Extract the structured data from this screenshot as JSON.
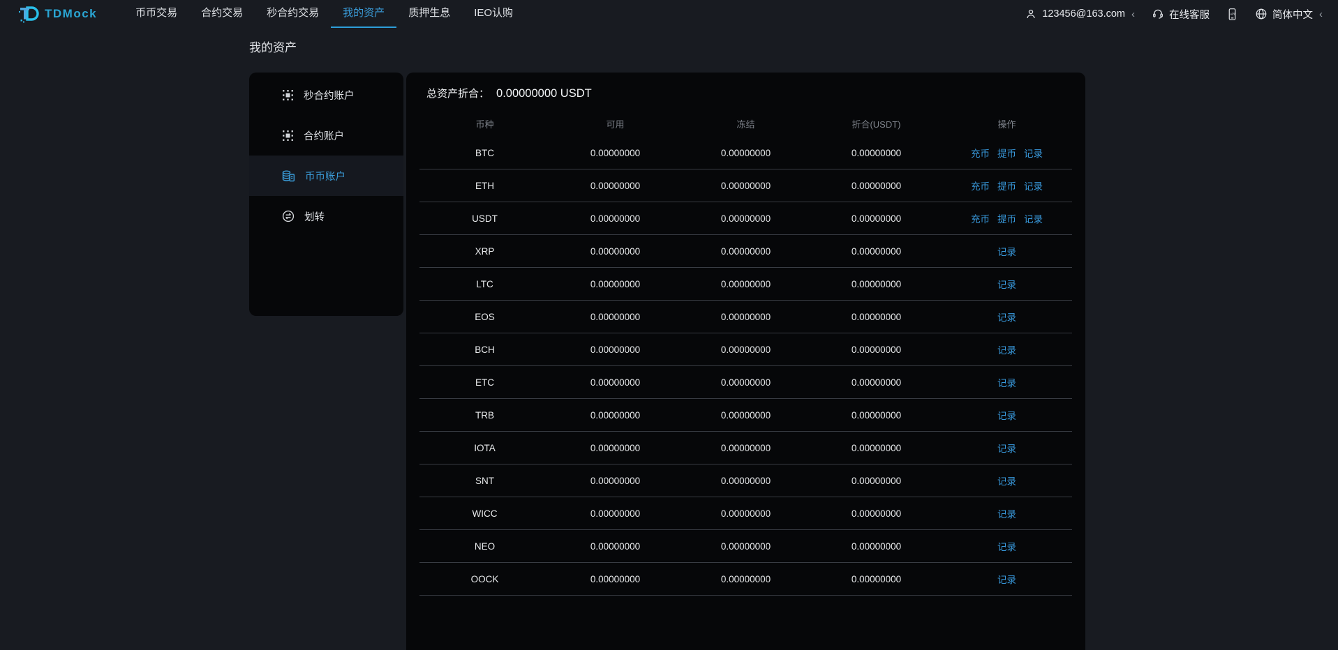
{
  "header": {
    "logo_text": "TDMock",
    "nav": [
      {
        "label": "币币交易",
        "active": false
      },
      {
        "label": "合约交易",
        "active": false
      },
      {
        "label": "秒合约交易",
        "active": false
      },
      {
        "label": "我的资产",
        "active": true
      },
      {
        "label": "质押生息",
        "active": false
      },
      {
        "label": "IEO认购",
        "active": false
      }
    ],
    "user_email": "123456@163.com",
    "service_label": "在线客服",
    "language_label": "简体中文",
    "chevron": "‹"
  },
  "page": {
    "title": "我的资产"
  },
  "sidebar": {
    "items": [
      {
        "label": "秒合约账户",
        "icon": "seconds-contract-icon",
        "active": false
      },
      {
        "label": "合约账户",
        "icon": "contract-icon",
        "active": false
      },
      {
        "label": "币币账户",
        "icon": "coins-icon",
        "active": true
      },
      {
        "label": "划转",
        "icon": "transfer-icon",
        "active": false
      }
    ]
  },
  "assets": {
    "total_label": "总资产折合：",
    "total_value": "0.00000000 USDT",
    "table": {
      "columns": [
        "币种",
        "可用",
        "冻结",
        "折合(USDT)",
        "操作"
      ],
      "action_labels": {
        "deposit": "充币",
        "withdraw": "提币",
        "record": "记录"
      },
      "rows": [
        {
          "symbol": "BTC",
          "available": "0.00000000",
          "frozen": "0.00000000",
          "usdt": "0.00000000",
          "actions": [
            "deposit",
            "withdraw",
            "record"
          ]
        },
        {
          "symbol": "ETH",
          "available": "0.00000000",
          "frozen": "0.00000000",
          "usdt": "0.00000000",
          "actions": [
            "deposit",
            "withdraw",
            "record"
          ]
        },
        {
          "symbol": "USDT",
          "available": "0.00000000",
          "frozen": "0.00000000",
          "usdt": "0.00000000",
          "actions": [
            "deposit",
            "withdraw",
            "record"
          ]
        },
        {
          "symbol": "XRP",
          "available": "0.00000000",
          "frozen": "0.00000000",
          "usdt": "0.00000000",
          "actions": [
            "record"
          ]
        },
        {
          "symbol": "LTC",
          "available": "0.00000000",
          "frozen": "0.00000000",
          "usdt": "0.00000000",
          "actions": [
            "record"
          ]
        },
        {
          "symbol": "EOS",
          "available": "0.00000000",
          "frozen": "0.00000000",
          "usdt": "0.00000000",
          "actions": [
            "record"
          ]
        },
        {
          "symbol": "BCH",
          "available": "0.00000000",
          "frozen": "0.00000000",
          "usdt": "0.00000000",
          "actions": [
            "record"
          ]
        },
        {
          "symbol": "ETC",
          "available": "0.00000000",
          "frozen": "0.00000000",
          "usdt": "0.00000000",
          "actions": [
            "record"
          ]
        },
        {
          "symbol": "TRB",
          "available": "0.00000000",
          "frozen": "0.00000000",
          "usdt": "0.00000000",
          "actions": [
            "record"
          ]
        },
        {
          "symbol": "IOTA",
          "available": "0.00000000",
          "frozen": "0.00000000",
          "usdt": "0.00000000",
          "actions": [
            "record"
          ]
        },
        {
          "symbol": "SNT",
          "available": "0.00000000",
          "frozen": "0.00000000",
          "usdt": "0.00000000",
          "actions": [
            "record"
          ]
        },
        {
          "symbol": "WICC",
          "available": "0.00000000",
          "frozen": "0.00000000",
          "usdt": "0.00000000",
          "actions": [
            "record"
          ]
        },
        {
          "symbol": "NEO",
          "available": "0.00000000",
          "frozen": "0.00000000",
          "usdt": "0.00000000",
          "actions": [
            "record"
          ]
        },
        {
          "symbol": "OOCK",
          "available": "0.00000000",
          "frozen": "0.00000000",
          "usdt": "0.00000000",
          "actions": [
            "record"
          ]
        }
      ]
    }
  },
  "colors": {
    "accent": "#3a9cd9",
    "link": "#3898db",
    "logo": "#2aa6d4",
    "page_bg": "#181b21",
    "card_bg": "#060709"
  }
}
